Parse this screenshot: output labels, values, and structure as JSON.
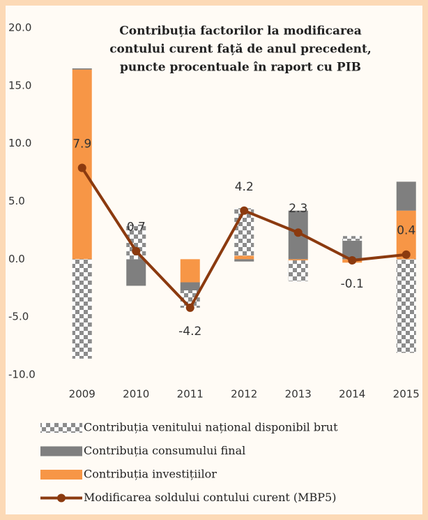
{
  "chart_data": {
    "type": "bar+line",
    "title": [
      "Contribuția factorilor la modificarea",
      "contului curent față de anul precedent,",
      "puncte procentuale în raport cu PIB"
    ],
    "categories": [
      "2009",
      "2010",
      "2011",
      "2012",
      "2013",
      "2014",
      "2015"
    ],
    "series": [
      {
        "name": "Contribuția venitului național disponibil brut",
        "type": "bar",
        "color": "#8c8c8c",
        "pattern": "checker",
        "values": [
          -8.6,
          3.0,
          -1.5,
          4.1,
          -1.8,
          0.4,
          -8.1
        ]
      },
      {
        "name": "Contribuția consumului final",
        "type": "bar",
        "color": "#7f7f7f",
        "values": [
          0.1,
          -2.3,
          -0.7,
          -0.2,
          4.2,
          1.6,
          2.5
        ]
      },
      {
        "name": "Contribuția investițiilor",
        "type": "bar",
        "color": "#f79646",
        "values": [
          16.4,
          0,
          -2.0,
          0.3,
          -0.1,
          -0.3,
          4.2
        ]
      },
      {
        "name": "Modificarea soldului contului curent (MBP5)",
        "type": "line",
        "color": "#8b3a0f",
        "values": [
          7.9,
          0.7,
          -4.2,
          4.2,
          2.3,
          -0.1,
          0.4
        ]
      }
    ],
    "ylim": [
      -10,
      20
    ],
    "yticks": [
      {
        "value": -10,
        "label": "-10.0"
      },
      {
        "value": -5,
        "label": "-5.0"
      },
      {
        "value": 0,
        "label": "0.0"
      },
      {
        "value": 5,
        "label": "5.0"
      },
      {
        "value": 10,
        "label": "10.0"
      },
      {
        "value": 15,
        "label": "15.0"
      },
      {
        "value": 20,
        "label": "20.0"
      }
    ],
    "grid": false
  }
}
